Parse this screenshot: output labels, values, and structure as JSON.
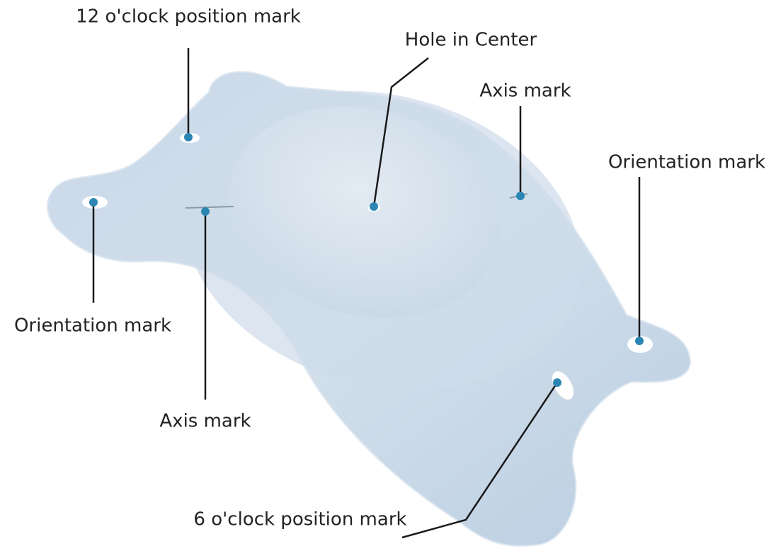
{
  "callouts": [
    "12 o'clock position mark",
    "Hole in Center",
    "Axis mark",
    "Orientation mark",
    "Orientation mark",
    "Axis mark",
    "6 o'clock position mark"
  ]
}
